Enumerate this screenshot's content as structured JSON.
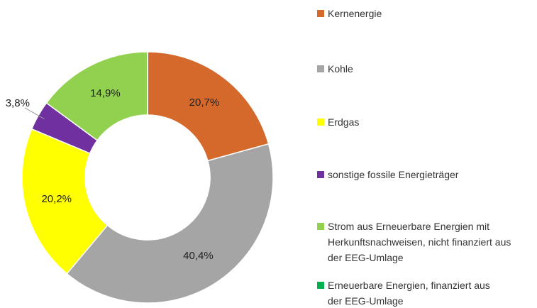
{
  "chart_data": {
    "type": "donut",
    "categories": [
      "Kernenergie",
      "Kohle",
      "Erdgas",
      "sonstige fossile Energieträger",
      "Strom aus Erneuerbare Energien mit Herkunftsnachweisen, nicht finanziert aus der EEG-Umlage",
      "Erneuerbare Energien, finanziert aus der EEG-Umlage"
    ],
    "values": [
      20.7,
      40.4,
      20.2,
      3.8,
      14.9,
      0
    ],
    "value_labels": [
      "20,7%",
      "40,4%",
      "20,2%",
      "3,8%",
      "14,9%",
      null
    ],
    "colors": [
      "#d4692b",
      "#a5a5a5",
      "#ffff00",
      "#7030a0",
      "#92d050",
      "#00b050"
    ],
    "legend": "right"
  }
}
